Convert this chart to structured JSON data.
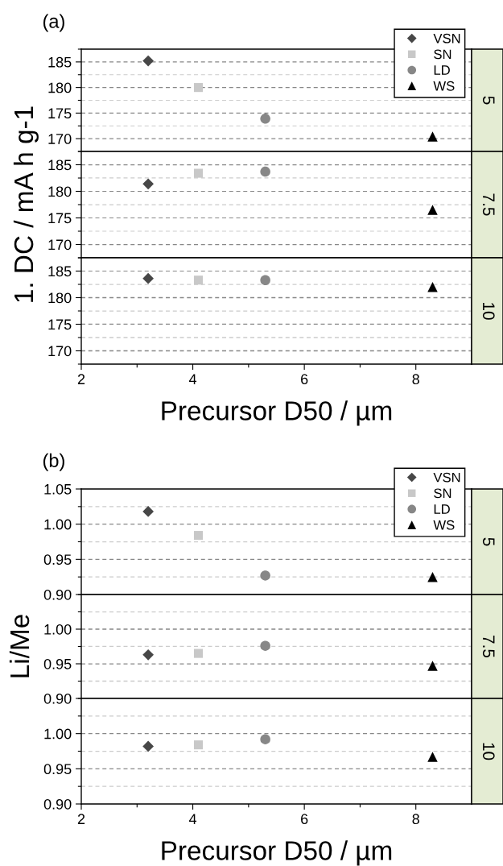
{
  "chart_data": [
    {
      "type": "scatter",
      "title": "(a)",
      "annotations": [
        "5"
      ],
      "legend": "top right",
      "grid": "y",
      "tick_labels": "y",
      "xlim": [
        2,
        9
      ],
      "ylim": [
        167.5,
        187.5
      ],
      "yticks": [
        {
          "value": 167.5,
          "label": null
        },
        170,
        {
          "value": 172.5,
          "label": null
        },
        175,
        {
          "value": 177.5,
          "label": null
        },
        180,
        {
          "value": 182.5,
          "label": null
        },
        185,
        {
          "value": 187.5,
          "label": null
        }
      ],
      "series": [
        {
          "name": "VSN",
          "color": "#474747",
          "marker": "diamond",
          "x": [
            3.2
          ],
          "values": [
            185.2
          ]
        },
        {
          "name": "SN",
          "color": "#c8c8c8",
          "marker": "square",
          "x": [
            4.1
          ],
          "values": [
            180.0
          ]
        },
        {
          "name": "LD",
          "color": "#878787",
          "marker": "circle",
          "x": [
            5.3
          ],
          "values": [
            173.9
          ]
        },
        {
          "name": "WS",
          "color": "#000000",
          "marker": "triangle",
          "x": [
            8.3
          ],
          "values": [
            170.4
          ]
        }
      ]
    },
    {
      "type": "scatter",
      "annotations": [
        "7.5"
      ],
      "grid": "y",
      "tick_labels": "y",
      "ylabel": "1. DC / mA h g-1",
      "xlim": [
        2,
        9
      ],
      "ylim": [
        167.5,
        187.5
      ],
      "yticks": [
        {
          "value": 167.5,
          "label": null
        },
        170,
        {
          "value": 172.5,
          "label": null
        },
        175,
        {
          "value": 177.5,
          "label": null
        },
        180,
        {
          "value": 182.5,
          "label": null
        },
        185,
        {
          "value": 187.5,
          "label": null
        }
      ],
      "series": [
        {
          "color": "#474747",
          "marker": "diamond",
          "x": [
            3.2
          ],
          "values": [
            181.4
          ]
        },
        {
          "color": "#c8c8c8",
          "marker": "square",
          "x": [
            4.1
          ],
          "values": [
            183.4
          ]
        },
        {
          "color": "#878787",
          "marker": "circle",
          "x": [
            5.3
          ],
          "values": [
            183.7
          ]
        },
        {
          "color": "#000000",
          "marker": "triangle",
          "x": [
            8.3
          ],
          "values": [
            176.5
          ]
        }
      ]
    },
    {
      "type": "scatter",
      "annotations": [
        "10"
      ],
      "grid": "y",
      "xlabel": "Precursor D50 / µm",
      "xlim": [
        2,
        9
      ],
      "xticks": [
        2,
        {
          "value": 3,
          "label": null
        },
        4,
        {
          "value": 5,
          "label": null
        },
        6,
        {
          "value": 7,
          "label": null
        },
        8
      ],
      "ylim": [
        167.5,
        187.5
      ],
      "yticks": [
        {
          "value": 167.5,
          "label": null
        },
        170,
        {
          "value": 172.5,
          "label": null
        },
        175,
        {
          "value": 177.5,
          "label": null
        },
        180,
        {
          "value": 182.5,
          "label": null
        },
        185,
        {
          "value": 187.5,
          "label": null
        }
      ],
      "series": [
        {
          "color": "#474747",
          "marker": "diamond",
          "x": [
            3.2
          ],
          "values": [
            183.6
          ]
        },
        {
          "color": "#c8c8c8",
          "marker": "square",
          "x": [
            4.1
          ],
          "values": [
            183.3
          ]
        },
        {
          "color": "#878787",
          "marker": "circle",
          "x": [
            5.3
          ],
          "values": [
            183.3
          ]
        },
        {
          "color": "#000000",
          "marker": "triangle",
          "x": [
            8.3
          ],
          "values": [
            182.0
          ]
        }
      ]
    },
    {
      "type": "scatter",
      "title": "(b)",
      "annotations": [
        "5"
      ],
      "legend": "top right",
      "grid": "y",
      "tick_labels": "y",
      "xlim": [
        2,
        9
      ],
      "ylim": [
        0.9,
        1.05
      ],
      "yticks": [
        {
          "value": 0.9,
          "label": "0.90"
        },
        {
          "value": 0.925,
          "label": null
        },
        0.95,
        {
          "value": 0.975,
          "label": null
        },
        {
          "value": 1.0,
          "label": "1.00"
        },
        {
          "value": 1.025,
          "label": null
        },
        1.05
      ],
      "series": [
        {
          "name": "VSN",
          "color": "#474747",
          "marker": "diamond",
          "x": [
            3.2
          ],
          "values": [
            1.018
          ]
        },
        {
          "name": "SN",
          "color": "#c8c8c8",
          "marker": "square",
          "x": [
            4.1
          ],
          "values": [
            0.984
          ]
        },
        {
          "name": "LD",
          "color": "#878787",
          "marker": "circle",
          "x": [
            5.3
          ],
          "values": [
            0.927
          ]
        },
        {
          "name": "WS",
          "color": "#000000",
          "marker": "triangle",
          "x": [
            8.3
          ],
          "values": [
            0.925
          ]
        }
      ]
    },
    {
      "type": "scatter",
      "annotations": [
        "7.5"
      ],
      "grid": "y",
      "tick_labels": "y",
      "ylabel": "Li/Me",
      "xlim": [
        2,
        9
      ],
      "ylim": [
        0.9,
        1.05
      ],
      "yticks": [
        {
          "value": 0.9,
          "label": "0.90"
        },
        {
          "value": 0.925,
          "label": null
        },
        0.95,
        {
          "value": 0.975,
          "label": null
        },
        {
          "value": 1.0,
          "label": "1.00"
        },
        {
          "value": 1.025,
          "label": null
        },
        {
          "value": 1.05,
          "label": null
        }
      ],
      "series": [
        {
          "color": "#474747",
          "marker": "diamond",
          "x": [
            3.2
          ],
          "values": [
            0.963
          ]
        },
        {
          "color": "#c8c8c8",
          "marker": "square",
          "x": [
            4.1
          ],
          "values": [
            0.965
          ]
        },
        {
          "color": "#878787",
          "marker": "circle",
          "x": [
            5.3
          ],
          "values": [
            0.976
          ]
        },
        {
          "color": "#000000",
          "marker": "triangle",
          "x": [
            8.3
          ],
          "values": [
            0.947
          ]
        }
      ]
    },
    {
      "type": "scatter",
      "annotations": [
        "10"
      ],
      "grid": "y",
      "xlabel": "Precursor D50 / µm",
      "xlim": [
        2,
        9
      ],
      "xticks": [
        2,
        {
          "value": 3,
          "label": null
        },
        4,
        {
          "value": 5,
          "label": null
        },
        6,
        {
          "value": 7,
          "label": null
        },
        8
      ],
      "ylim": [
        0.9,
        1.05
      ],
      "yticks": [
        {
          "value": 0.9,
          "label": "0.90"
        },
        {
          "value": 0.925,
          "label": null
        },
        0.95,
        {
          "value": 0.975,
          "label": null
        },
        {
          "value": 1.0,
          "label": "1.00"
        },
        {
          "value": 1.025,
          "label": null
        },
        {
          "value": 1.05,
          "label": null
        }
      ],
      "series": [
        {
          "color": "#474747",
          "marker": "diamond",
          "x": [
            3.2
          ],
          "values": [
            0.982
          ]
        },
        {
          "color": "#c8c8c8",
          "marker": "square",
          "x": [
            4.1
          ],
          "values": [
            0.984
          ]
        },
        {
          "color": "#878787",
          "marker": "circle",
          "x": [
            5.3
          ],
          "values": [
            0.992
          ]
        },
        {
          "color": "#000000",
          "marker": "triangle",
          "x": [
            8.3
          ],
          "values": [
            0.967
          ]
        }
      ]
    }
  ]
}
